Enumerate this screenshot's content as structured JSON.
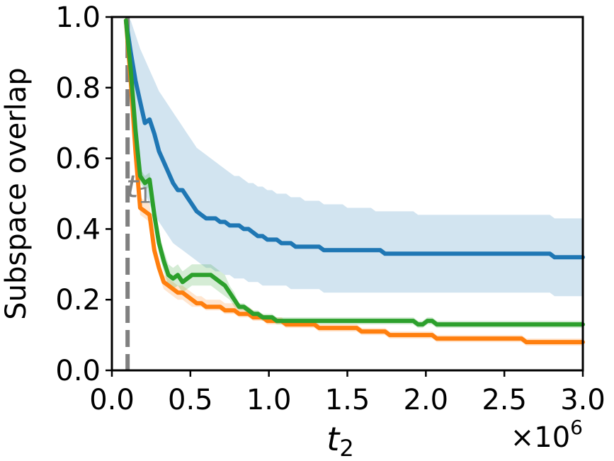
{
  "chart_data": {
    "type": "line",
    "title": "",
    "ylabel": "Subspace overlap",
    "xlabel": {
      "base": "t",
      "sub": "2"
    },
    "x_multiplier_text": {
      "prefix": "×10",
      "exp": "6"
    },
    "xlim": [
      0.0,
      3.0
    ],
    "ylim": [
      0.0,
      1.0
    ],
    "xticks": [
      0.0,
      0.5,
      1.0,
      1.5,
      2.0,
      2.5,
      3.0
    ],
    "xtick_labels": [
      "0.0",
      "0.5",
      "1.0",
      "1.5",
      "2.0",
      "2.5",
      "3.0"
    ],
    "yticks": [
      0.0,
      0.2,
      0.4,
      0.6,
      0.8,
      1.0
    ],
    "ytick_labels": [
      "0.0",
      "0.2",
      "0.4",
      "0.6",
      "0.8",
      "1.0"
    ],
    "grid": false,
    "legend": "none",
    "annotation": {
      "label": {
        "base": "t",
        "sub": "1"
      },
      "x": 0.1,
      "style": "dashed vertical line",
      "color": "#808080"
    },
    "x": [
      0.09,
      0.12,
      0.15,
      0.18,
      0.21,
      0.24,
      0.27,
      0.3,
      0.33,
      0.36,
      0.39,
      0.42,
      0.45,
      0.48,
      0.51,
      0.54,
      0.57,
      0.6,
      0.63,
      0.66,
      0.69,
      0.72,
      0.75,
      0.78,
      0.81,
      0.84,
      0.87,
      0.9,
      0.93,
      0.96,
      0.99,
      1.02,
      1.05,
      1.08,
      1.11,
      1.14,
      1.17,
      1.2,
      1.23,
      1.26,
      1.29,
      1.32,
      1.35,
      1.38,
      1.41,
      1.44,
      1.47,
      1.5,
      1.53,
      1.56,
      1.59,
      1.62,
      1.65,
      1.68,
      1.71,
      1.74,
      1.77,
      1.8,
      1.83,
      1.86,
      1.89,
      1.92,
      1.95,
      1.98,
      2.01,
      2.04,
      2.07,
      2.1,
      2.13,
      2.16,
      2.19,
      2.22,
      2.25,
      2.28,
      2.31,
      2.34,
      2.37,
      2.4,
      2.43,
      2.46,
      2.49,
      2.52,
      2.55,
      2.58,
      2.61,
      2.64,
      2.67,
      2.7,
      2.73,
      2.76,
      2.79,
      2.82,
      2.85,
      2.88,
      2.91,
      2.94,
      2.97,
      3.0
    ],
    "series": [
      {
        "color": "#1f77b4",
        "band_color": "#1f77b4",
        "values": [
          0.99,
          0.9,
          0.82,
          0.76,
          0.7,
          0.71,
          0.67,
          0.62,
          0.59,
          0.56,
          0.53,
          0.51,
          0.51,
          0.49,
          0.47,
          0.45,
          0.44,
          0.43,
          0.43,
          0.43,
          0.42,
          0.42,
          0.41,
          0.41,
          0.41,
          0.4,
          0.4,
          0.39,
          0.38,
          0.38,
          0.37,
          0.37,
          0.37,
          0.36,
          0.36,
          0.36,
          0.35,
          0.35,
          0.35,
          0.35,
          0.35,
          0.35,
          0.34,
          0.34,
          0.34,
          0.34,
          0.34,
          0.34,
          0.34,
          0.34,
          0.34,
          0.34,
          0.34,
          0.34,
          0.34,
          0.33,
          0.33,
          0.33,
          0.33,
          0.33,
          0.33,
          0.33,
          0.33,
          0.33,
          0.33,
          0.33,
          0.33,
          0.33,
          0.33,
          0.33,
          0.33,
          0.33,
          0.33,
          0.33,
          0.33,
          0.33,
          0.33,
          0.33,
          0.33,
          0.33,
          0.33,
          0.33,
          0.33,
          0.33,
          0.33,
          0.33,
          0.33,
          0.33,
          0.33,
          0.33,
          0.33,
          0.32,
          0.32,
          0.32,
          0.32,
          0.32,
          0.32,
          0.32
        ],
        "lower": [
          0.96,
          0.78,
          0.66,
          0.57,
          0.5,
          0.47,
          0.44,
          0.42,
          0.4,
          0.38,
          0.36,
          0.35,
          0.34,
          0.33,
          0.32,
          0.31,
          0.3,
          0.29,
          0.29,
          0.28,
          0.28,
          0.27,
          0.27,
          0.26,
          0.26,
          0.26,
          0.25,
          0.25,
          0.25,
          0.24,
          0.24,
          0.24,
          0.24,
          0.24,
          0.24,
          0.23,
          0.23,
          0.23,
          0.23,
          0.23,
          0.23,
          0.23,
          0.22,
          0.22,
          0.22,
          0.22,
          0.22,
          0.22,
          0.22,
          0.22,
          0.22,
          0.22,
          0.22,
          0.22,
          0.22,
          0.22,
          0.22,
          0.22,
          0.22,
          0.22,
          0.22,
          0.22,
          0.22,
          0.22,
          0.22,
          0.22,
          0.22,
          0.22,
          0.22,
          0.22,
          0.22,
          0.22,
          0.22,
          0.22,
          0.22,
          0.22,
          0.22,
          0.22,
          0.22,
          0.22,
          0.22,
          0.22,
          0.22,
          0.22,
          0.22,
          0.22,
          0.22,
          0.22,
          0.22,
          0.22,
          0.22,
          0.21,
          0.21,
          0.21,
          0.21,
          0.21,
          0.21,
          0.21
        ],
        "upper": [
          1.0,
          0.99,
          0.95,
          0.91,
          0.88,
          0.85,
          0.82,
          0.79,
          0.77,
          0.75,
          0.73,
          0.71,
          0.69,
          0.67,
          0.65,
          0.63,
          0.62,
          0.61,
          0.6,
          0.59,
          0.58,
          0.57,
          0.56,
          0.55,
          0.55,
          0.54,
          0.53,
          0.53,
          0.52,
          0.52,
          0.51,
          0.51,
          0.5,
          0.5,
          0.5,
          0.49,
          0.49,
          0.49,
          0.48,
          0.48,
          0.48,
          0.48,
          0.47,
          0.47,
          0.47,
          0.47,
          0.47,
          0.46,
          0.46,
          0.46,
          0.46,
          0.46,
          0.46,
          0.45,
          0.45,
          0.45,
          0.45,
          0.45,
          0.45,
          0.45,
          0.45,
          0.45,
          0.44,
          0.44,
          0.44,
          0.44,
          0.44,
          0.44,
          0.44,
          0.44,
          0.44,
          0.44,
          0.44,
          0.44,
          0.44,
          0.44,
          0.44,
          0.44,
          0.44,
          0.44,
          0.44,
          0.44,
          0.44,
          0.44,
          0.44,
          0.44,
          0.44,
          0.44,
          0.44,
          0.44,
          0.44,
          0.43,
          0.43,
          0.43,
          0.43,
          0.43,
          0.43,
          0.43
        ]
      },
      {
        "color": "#ff7f0e",
        "band_color": "#ff7f0e",
        "values": [
          0.99,
          0.82,
          0.62,
          0.46,
          0.45,
          0.44,
          0.34,
          0.29,
          0.25,
          0.24,
          0.23,
          0.22,
          0.22,
          0.21,
          0.2,
          0.19,
          0.19,
          0.18,
          0.18,
          0.18,
          0.18,
          0.17,
          0.17,
          0.17,
          0.16,
          0.16,
          0.16,
          0.15,
          0.15,
          0.15,
          0.14,
          0.14,
          0.14,
          0.14,
          0.13,
          0.13,
          0.13,
          0.13,
          0.13,
          0.13,
          0.13,
          0.12,
          0.12,
          0.12,
          0.12,
          0.12,
          0.12,
          0.12,
          0.12,
          0.12,
          0.11,
          0.11,
          0.11,
          0.11,
          0.11,
          0.11,
          0.1,
          0.1,
          0.1,
          0.1,
          0.1,
          0.1,
          0.1,
          0.1,
          0.1,
          0.1,
          0.09,
          0.09,
          0.09,
          0.09,
          0.09,
          0.09,
          0.09,
          0.09,
          0.09,
          0.09,
          0.09,
          0.09,
          0.09,
          0.09,
          0.09,
          0.09,
          0.09,
          0.09,
          0.09,
          0.08,
          0.08,
          0.08,
          0.08,
          0.08,
          0.08,
          0.08,
          0.08,
          0.08,
          0.08,
          0.08,
          0.08,
          0.08
        ],
        "lower": [
          0.98,
          0.8,
          0.6,
          0.44,
          0.43,
          0.42,
          0.32,
          0.27,
          0.23,
          0.22,
          0.21,
          0.2,
          0.2,
          0.19,
          0.18,
          0.18,
          0.18,
          0.17,
          0.17,
          0.17,
          0.17,
          0.16,
          0.16,
          0.16,
          0.15,
          0.15,
          0.15,
          0.14,
          0.14,
          0.14,
          0.13,
          0.13,
          0.13,
          0.13,
          0.12,
          0.12,
          0.12,
          0.12,
          0.12,
          0.12,
          0.12,
          0.11,
          0.11,
          0.11,
          0.11,
          0.11,
          0.11,
          0.11,
          0.11,
          0.11,
          0.1,
          0.1,
          0.1,
          0.1,
          0.1,
          0.1,
          0.09,
          0.09,
          0.09,
          0.09,
          0.09,
          0.09,
          0.09,
          0.09,
          0.09,
          0.09,
          0.08,
          0.08,
          0.08,
          0.08,
          0.08,
          0.08,
          0.08,
          0.08,
          0.08,
          0.08,
          0.08,
          0.08,
          0.08,
          0.08,
          0.08,
          0.08,
          0.08,
          0.08,
          0.08,
          0.07,
          0.07,
          0.07,
          0.07,
          0.07,
          0.07,
          0.07,
          0.07,
          0.07,
          0.07,
          0.07,
          0.07,
          0.07
        ],
        "upper": [
          1.0,
          0.84,
          0.65,
          0.49,
          0.48,
          0.47,
          0.37,
          0.31,
          0.27,
          0.26,
          0.25,
          0.24,
          0.24,
          0.23,
          0.22,
          0.21,
          0.21,
          0.2,
          0.2,
          0.2,
          0.2,
          0.19,
          0.19,
          0.19,
          0.18,
          0.18,
          0.18,
          0.17,
          0.16,
          0.16,
          0.15,
          0.15,
          0.15,
          0.15,
          0.14,
          0.14,
          0.14,
          0.14,
          0.14,
          0.14,
          0.14,
          0.13,
          0.13,
          0.13,
          0.13,
          0.13,
          0.13,
          0.13,
          0.13,
          0.13,
          0.12,
          0.12,
          0.12,
          0.12,
          0.12,
          0.12,
          0.11,
          0.11,
          0.11,
          0.11,
          0.11,
          0.11,
          0.11,
          0.11,
          0.11,
          0.11,
          0.1,
          0.1,
          0.1,
          0.1,
          0.1,
          0.1,
          0.1,
          0.1,
          0.1,
          0.1,
          0.1,
          0.1,
          0.1,
          0.1,
          0.1,
          0.1,
          0.1,
          0.1,
          0.1,
          0.09,
          0.09,
          0.09,
          0.09,
          0.09,
          0.09,
          0.09,
          0.09,
          0.09,
          0.09,
          0.09,
          0.09,
          0.09
        ]
      },
      {
        "color": "#2ca02c",
        "band_color": "#2ca02c",
        "values": [
          0.99,
          0.85,
          0.68,
          0.55,
          0.53,
          0.54,
          0.44,
          0.36,
          0.31,
          0.27,
          0.26,
          0.27,
          0.25,
          0.26,
          0.27,
          0.27,
          0.27,
          0.27,
          0.27,
          0.26,
          0.25,
          0.24,
          0.22,
          0.2,
          0.18,
          0.18,
          0.17,
          0.16,
          0.16,
          0.15,
          0.15,
          0.15,
          0.14,
          0.14,
          0.14,
          0.14,
          0.14,
          0.14,
          0.14,
          0.14,
          0.14,
          0.14,
          0.14,
          0.14,
          0.14,
          0.14,
          0.14,
          0.14,
          0.14,
          0.14,
          0.14,
          0.14,
          0.14,
          0.14,
          0.14,
          0.14,
          0.14,
          0.14,
          0.14,
          0.14,
          0.14,
          0.14,
          0.13,
          0.13,
          0.14,
          0.14,
          0.13,
          0.13,
          0.13,
          0.13,
          0.13,
          0.13,
          0.13,
          0.13,
          0.13,
          0.13,
          0.13,
          0.13,
          0.13,
          0.13,
          0.13,
          0.13,
          0.13,
          0.13,
          0.13,
          0.13,
          0.13,
          0.13,
          0.13,
          0.13,
          0.13,
          0.13,
          0.13,
          0.13,
          0.13,
          0.13,
          0.13,
          0.13
        ],
        "lower": [
          0.98,
          0.83,
          0.66,
          0.53,
          0.51,
          0.52,
          0.41,
          0.33,
          0.28,
          0.24,
          0.23,
          0.24,
          0.22,
          0.23,
          0.24,
          0.24,
          0.24,
          0.24,
          0.24,
          0.23,
          0.22,
          0.21,
          0.2,
          0.18,
          0.17,
          0.17,
          0.16,
          0.15,
          0.15,
          0.14,
          0.14,
          0.14,
          0.13,
          0.13,
          0.13,
          0.13,
          0.13,
          0.13,
          0.13,
          0.13,
          0.13,
          0.13,
          0.13,
          0.13,
          0.13,
          0.13,
          0.13,
          0.13,
          0.13,
          0.13,
          0.13,
          0.13,
          0.13,
          0.13,
          0.13,
          0.13,
          0.13,
          0.13,
          0.13,
          0.13,
          0.13,
          0.13,
          0.12,
          0.12,
          0.13,
          0.13,
          0.12,
          0.12,
          0.12,
          0.12,
          0.12,
          0.12,
          0.12,
          0.12,
          0.12,
          0.12,
          0.12,
          0.12,
          0.12,
          0.12,
          0.12,
          0.12,
          0.12,
          0.12,
          0.12,
          0.12,
          0.12,
          0.12,
          0.12,
          0.12,
          0.12,
          0.12,
          0.12,
          0.12,
          0.12,
          0.12,
          0.12,
          0.12
        ],
        "upper": [
          1.0,
          0.87,
          0.7,
          0.57,
          0.55,
          0.56,
          0.47,
          0.39,
          0.34,
          0.3,
          0.29,
          0.3,
          0.28,
          0.29,
          0.3,
          0.3,
          0.3,
          0.3,
          0.3,
          0.29,
          0.28,
          0.27,
          0.24,
          0.22,
          0.19,
          0.19,
          0.18,
          0.17,
          0.17,
          0.16,
          0.16,
          0.16,
          0.15,
          0.15,
          0.15,
          0.15,
          0.15,
          0.15,
          0.15,
          0.15,
          0.15,
          0.15,
          0.15,
          0.15,
          0.15,
          0.15,
          0.15,
          0.15,
          0.15,
          0.15,
          0.15,
          0.15,
          0.15,
          0.15,
          0.15,
          0.15,
          0.15,
          0.15,
          0.15,
          0.15,
          0.15,
          0.15,
          0.14,
          0.14,
          0.15,
          0.15,
          0.14,
          0.14,
          0.14,
          0.14,
          0.14,
          0.14,
          0.14,
          0.14,
          0.14,
          0.14,
          0.14,
          0.14,
          0.14,
          0.14,
          0.14,
          0.14,
          0.14,
          0.14,
          0.14,
          0.14,
          0.14,
          0.14,
          0.14,
          0.14,
          0.14,
          0.14,
          0.14,
          0.14,
          0.14,
          0.14,
          0.14,
          0.14
        ]
      }
    ]
  }
}
